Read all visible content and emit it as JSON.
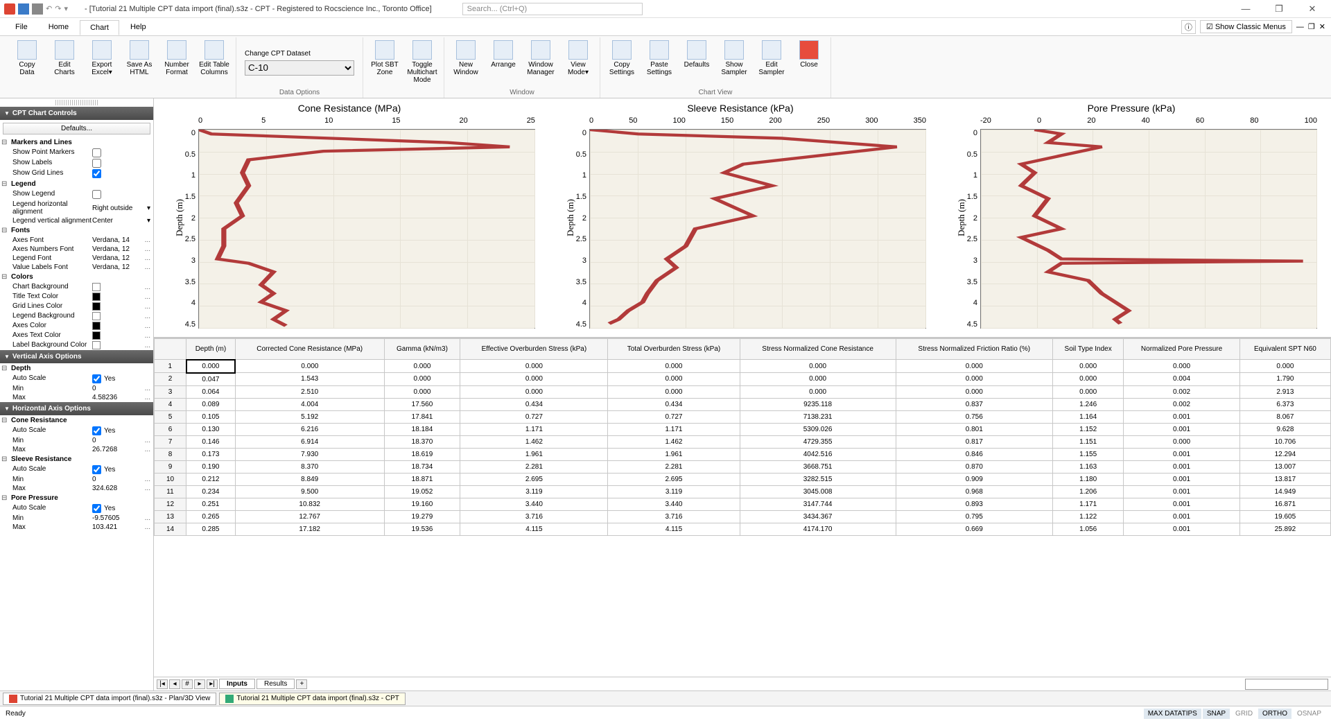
{
  "title": "- [Tutorial 21 Multiple CPT data import (final).s3z - CPT - Registered to Rocscience Inc., Toronto Office]",
  "search_placeholder": "Search... (Ctrl+Q)",
  "menus": [
    "File",
    "Home",
    "Chart",
    "Help"
  ],
  "classic_menus": "Show Classic Menus",
  "ribbon_groups": {
    "g1": [
      {
        "l1": "Copy",
        "l2": "Data"
      },
      {
        "l1": "Edit",
        "l2": "Charts"
      },
      {
        "l1": "Export",
        "l2": "Excel▾"
      },
      {
        "l1": "Save As",
        "l2": "HTML"
      },
      {
        "l1": "Number",
        "l2": "Format"
      },
      {
        "l1": "Edit Table",
        "l2": "Columns"
      }
    ],
    "g1_label": "",
    "dataset_label": "Change CPT Dataset",
    "dataset_value": "C-10",
    "g2_label": "Data Options",
    "g3": [
      {
        "l1": "Plot SBT",
        "l2": "Zone"
      },
      {
        "l1": "Toggle",
        "l2": "Multichart Mode"
      }
    ],
    "g4": [
      {
        "l1": "New",
        "l2": "Window"
      },
      {
        "l1": "Arrange",
        "l2": ""
      },
      {
        "l1": "Window",
        "l2": "Manager"
      },
      {
        "l1": "View",
        "l2": "Mode▾"
      }
    ],
    "g4_label": "Window",
    "g5": [
      {
        "l1": "Copy",
        "l2": "Settings"
      },
      {
        "l1": "Paste",
        "l2": "Settings"
      },
      {
        "l1": "Defaults",
        "l2": ""
      },
      {
        "l1": "Show",
        "l2": "Sampler"
      },
      {
        "l1": "Edit",
        "l2": "Sampler"
      },
      {
        "l1": "Close",
        "l2": "",
        "red": true
      }
    ],
    "g5_label": "Chart View"
  },
  "sidebar": {
    "panel1": "CPT Chart Controls",
    "defaults": "Defaults...",
    "s_markers": "Markers and Lines",
    "markers": [
      {
        "k": "Show Point Markers",
        "cb": false
      },
      {
        "k": "Show Labels",
        "cb": false
      },
      {
        "k": "Show Grid Lines",
        "cb": true
      }
    ],
    "s_legend": "Legend",
    "legend": [
      {
        "k": "Show Legend",
        "cb": false
      },
      {
        "k": "Legend horizontal alignment",
        "v": "Right outside",
        "dd": true
      },
      {
        "k": "Legend vertical alignment",
        "v": "Center",
        "dd": true
      }
    ],
    "s_fonts": "Fonts",
    "fonts": [
      {
        "k": "Axes Font",
        "v": "Verdana, 14"
      },
      {
        "k": "Axes Numbers Font",
        "v": "Verdana, 12"
      },
      {
        "k": "Legend Font",
        "v": "Verdana, 12"
      },
      {
        "k": "Value Labels Font",
        "v": "Verdana, 12"
      }
    ],
    "s_colors": "Colors",
    "colors": [
      {
        "k": "Chart Background",
        "c": "#ffffff"
      },
      {
        "k": "Title Text Color",
        "c": "#000000"
      },
      {
        "k": "Grid Lines Color",
        "c": "#000000"
      },
      {
        "k": "Legend Background",
        "c": "#ffffff"
      },
      {
        "k": "Axes Color",
        "c": "#000000"
      },
      {
        "k": "Axes Text Color",
        "c": "#000000"
      },
      {
        "k": "Label Background Color",
        "c": "#ffffff"
      }
    ],
    "panel2": "Vertical Axis Options",
    "s_depth": "Depth",
    "depth": [
      {
        "k": "Auto Scale",
        "cb": true,
        "v": "Yes"
      },
      {
        "k": "Min",
        "v": "0"
      },
      {
        "k": "Max",
        "v": "4.58236"
      }
    ],
    "panel3": "Horizontal Axis Options",
    "s_cone": "Cone Resistance",
    "cone": [
      {
        "k": "Auto Scale",
        "cb": true,
        "v": "Yes"
      },
      {
        "k": "Min",
        "v": "0"
      },
      {
        "k": "Max",
        "v": "26.7268"
      }
    ],
    "s_sleeve": "Sleeve Resistance",
    "sleeve": [
      {
        "k": "Auto Scale",
        "cb": true,
        "v": "Yes"
      },
      {
        "k": "Min",
        "v": "0"
      },
      {
        "k": "Max",
        "v": "324.628"
      }
    ],
    "s_pore": "Pore Pressure",
    "pore": [
      {
        "k": "Auto Scale",
        "cb": true,
        "v": "Yes"
      },
      {
        "k": "Min",
        "v": "-9.57605"
      },
      {
        "k": "Max",
        "v": "103.421"
      }
    ]
  },
  "charts": {
    "c1": {
      "title": "Cone Resistance (MPa)",
      "ylabel": "Depth (m)",
      "xticks": [
        "0",
        "5",
        "10",
        "15",
        "20",
        "25"
      ],
      "yticks": [
        "0",
        "0.5",
        "1",
        "1.5",
        "2",
        "2.5",
        "3",
        "3.5",
        "4",
        "4.5"
      ],
      "xlim": [
        0,
        27
      ],
      "ylim": [
        0,
        4.6
      ],
      "line_color": "#b23a3a",
      "bg_color": "#f4f1e8",
      "data": [
        [
          0,
          0
        ],
        [
          1,
          0.1
        ],
        [
          20,
          0.3
        ],
        [
          25,
          0.4
        ],
        [
          10,
          0.5
        ],
        [
          4,
          0.7
        ],
        [
          3.5,
          1
        ],
        [
          4,
          1.3
        ],
        [
          3,
          1.7
        ],
        [
          3.5,
          2
        ],
        [
          2,
          2.3
        ],
        [
          2,
          2.7
        ],
        [
          1.5,
          3
        ],
        [
          4,
          3.1
        ],
        [
          6,
          3.3
        ],
        [
          5,
          3.6
        ],
        [
          6,
          3.8
        ],
        [
          5,
          4
        ],
        [
          7,
          4.2
        ],
        [
          6,
          4.4
        ],
        [
          7,
          4.55
        ]
      ]
    },
    "c2": {
      "title": "Sleeve Resistance (kPa)",
      "ylabel": "Depth (m)",
      "xticks": [
        "0",
        "50",
        "100",
        "150",
        "200",
        "250",
        "300",
        "350"
      ],
      "yticks": [
        "0",
        "0.5",
        "1",
        "1.5",
        "2",
        "2.5",
        "3",
        "3.5",
        "4",
        "4.5"
      ],
      "xlim": [
        0,
        350
      ],
      "ylim": [
        0,
        4.6
      ],
      "line_color": "#b23a3a",
      "bg_color": "#f4f1e8",
      "data": [
        [
          0,
          0
        ],
        [
          50,
          0.1
        ],
        [
          200,
          0.2
        ],
        [
          320,
          0.4
        ],
        [
          280,
          0.5
        ],
        [
          160,
          0.8
        ],
        [
          140,
          1
        ],
        [
          190,
          1.3
        ],
        [
          130,
          1.6
        ],
        [
          170,
          2
        ],
        [
          110,
          2.3
        ],
        [
          100,
          2.7
        ],
        [
          80,
          3
        ],
        [
          90,
          3.2
        ],
        [
          70,
          3.5
        ],
        [
          60,
          3.8
        ],
        [
          55,
          4
        ],
        [
          40,
          4.2
        ],
        [
          30,
          4.4
        ],
        [
          20,
          4.5
        ]
      ]
    },
    "c3": {
      "title": "Pore Pressure (kPa)",
      "ylabel": "Depth (m)",
      "xticks": [
        "-20",
        "0",
        "20",
        "40",
        "60",
        "80",
        "100"
      ],
      "yticks": [
        "0",
        "0.5",
        "1",
        "1.5",
        "2",
        "2.5",
        "3",
        "3.5",
        "4",
        "4.5"
      ],
      "xlim": [
        -20,
        105
      ],
      "ylim": [
        0,
        4.6
      ],
      "line_color": "#b23a3a",
      "bg_color": "#f4f1e8",
      "data": [
        [
          0,
          0
        ],
        [
          10,
          0.1
        ],
        [
          5,
          0.3
        ],
        [
          25,
          0.4
        ],
        [
          10,
          0.6
        ],
        [
          -5,
          0.8
        ],
        [
          0,
          1
        ],
        [
          -5,
          1.3
        ],
        [
          5,
          1.6
        ],
        [
          0,
          2
        ],
        [
          10,
          2.3
        ],
        [
          -5,
          2.5
        ],
        [
          5,
          2.8
        ],
        [
          10,
          3
        ],
        [
          100,
          3.05
        ],
        [
          10,
          3.1
        ],
        [
          5,
          3.3
        ],
        [
          20,
          3.5
        ],
        [
          25,
          3.8
        ],
        [
          30,
          4
        ],
        [
          35,
          4.2
        ],
        [
          30,
          4.4
        ],
        [
          32,
          4.5
        ]
      ]
    }
  },
  "table": {
    "headers": [
      "",
      "Depth (m)",
      "Corrected Cone Resistance (MPa)",
      "Gamma (kN/m3)",
      "Effective Overburden Stress (kPa)",
      "Total Overburden Stress (kPa)",
      "Stress Normalized Cone Resistance",
      "Stress Normalized Friction Ratio (%)",
      "Soil Type Index",
      "Normalized Pore Pressure",
      "Equivalent SPT N60"
    ],
    "rows": [
      [
        "1",
        "0.000",
        "0.000",
        "0.000",
        "0.000",
        "0.000",
        "0.000",
        "0.000",
        "0.000",
        "0.000",
        "0.000"
      ],
      [
        "2",
        "0.047",
        "1.543",
        "0.000",
        "0.000",
        "0.000",
        "0.000",
        "0.000",
        "0.000",
        "0.004",
        "1.790"
      ],
      [
        "3",
        "0.064",
        "2.510",
        "0.000",
        "0.000",
        "0.000",
        "0.000",
        "0.000",
        "0.000",
        "0.002",
        "2.913"
      ],
      [
        "4",
        "0.089",
        "4.004",
        "17.560",
        "0.434",
        "0.434",
        "9235.118",
        "0.837",
        "1.246",
        "0.002",
        "6.373"
      ],
      [
        "5",
        "0.105",
        "5.192",
        "17.841",
        "0.727",
        "0.727",
        "7138.231",
        "0.756",
        "1.164",
        "0.001",
        "8.067"
      ],
      [
        "6",
        "0.130",
        "6.216",
        "18.184",
        "1.171",
        "1.171",
        "5309.026",
        "0.801",
        "1.152",
        "0.001",
        "9.628"
      ],
      [
        "7",
        "0.146",
        "6.914",
        "18.370",
        "1.462",
        "1.462",
        "4729.355",
        "0.817",
        "1.151",
        "0.000",
        "10.706"
      ],
      [
        "8",
        "0.173",
        "7.930",
        "18.619",
        "1.961",
        "1.961",
        "4042.516",
        "0.846",
        "1.155",
        "0.001",
        "12.294"
      ],
      [
        "9",
        "0.190",
        "8.370",
        "18.734",
        "2.281",
        "2.281",
        "3668.751",
        "0.870",
        "1.163",
        "0.001",
        "13.007"
      ],
      [
        "10",
        "0.212",
        "8.849",
        "18.871",
        "2.695",
        "2.695",
        "3282.515",
        "0.909",
        "1.180",
        "0.001",
        "13.817"
      ],
      [
        "11",
        "0.234",
        "9.500",
        "19.052",
        "3.119",
        "3.119",
        "3045.008",
        "0.968",
        "1.206",
        "0.001",
        "14.949"
      ],
      [
        "12",
        "0.251",
        "10.832",
        "19.160",
        "3.440",
        "3.440",
        "3147.744",
        "0.893",
        "1.171",
        "0.001",
        "16.871"
      ],
      [
        "13",
        "0.265",
        "12.767",
        "19.279",
        "3.716",
        "3.716",
        "3434.367",
        "0.795",
        "1.122",
        "0.001",
        "19.605"
      ],
      [
        "14",
        "0.285",
        "17.182",
        "19.536",
        "4.115",
        "4.115",
        "4174.170",
        "0.669",
        "1.056",
        "0.001",
        "25.892"
      ]
    ]
  },
  "sheet_tabs": {
    "inputs": "Inputs",
    "results": "Results"
  },
  "doc_tabs": [
    "Tutorial 21 Multiple CPT data import (final).s3z - Plan/3D View",
    "Tutorial 21 Multiple CPT data import (final).s3z - CPT"
  ],
  "status": {
    "ready": "Ready",
    "items": [
      "MAX DATATIPS",
      "SNAP",
      "GRID",
      "ORTHO",
      "OSNAP"
    ]
  }
}
